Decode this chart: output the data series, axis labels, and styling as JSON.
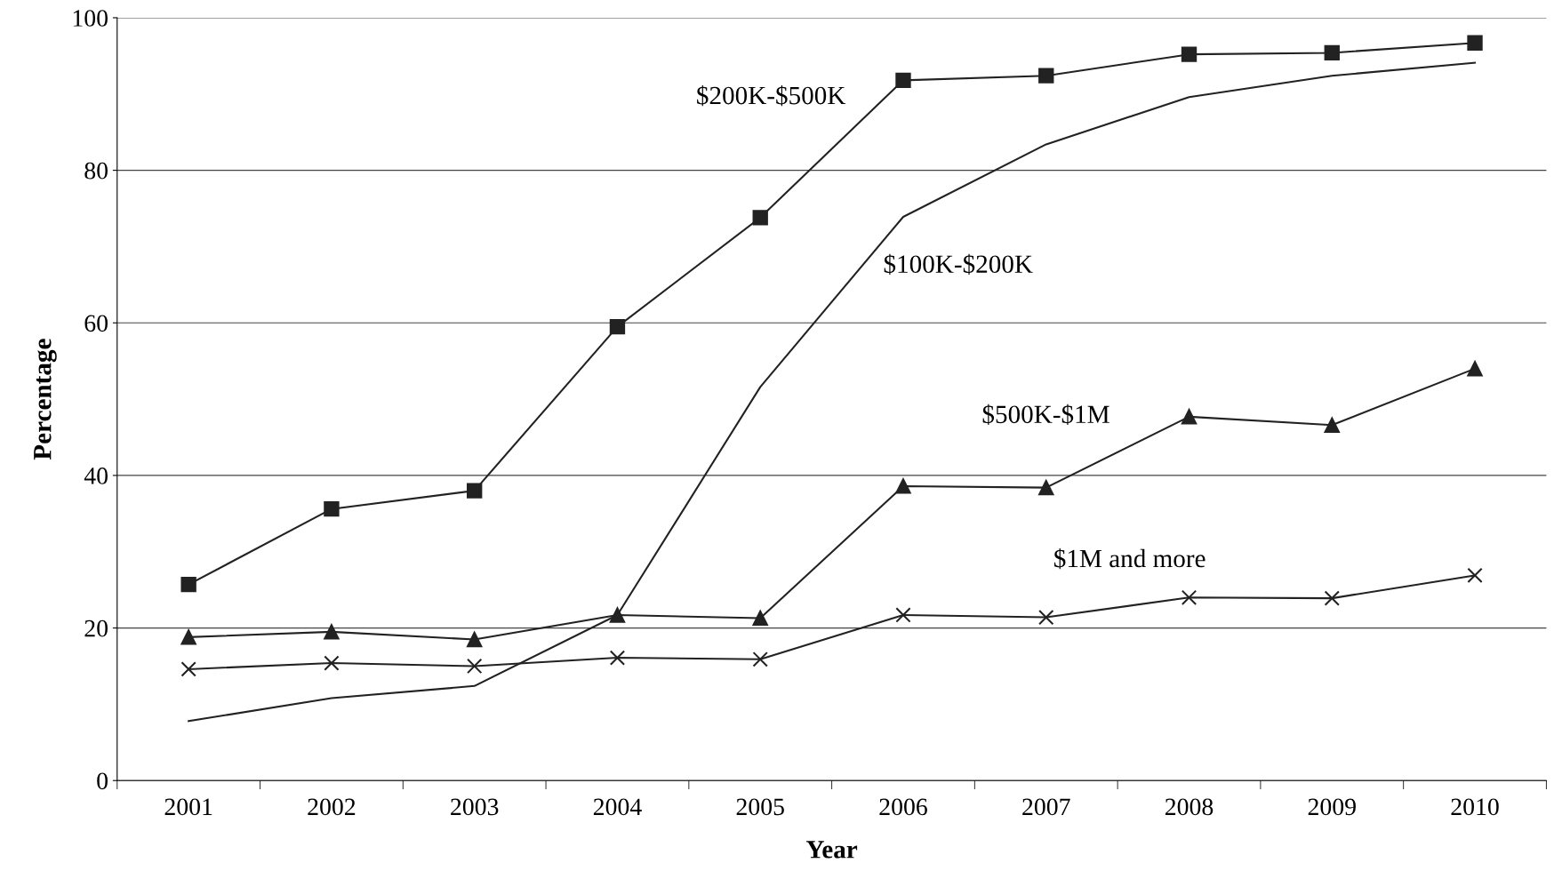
{
  "chart_data": {
    "type": "line",
    "xlabel": "Year",
    "ylabel": "Percentage",
    "categories": [
      "2001",
      "2002",
      "2003",
      "2004",
      "2005",
      "2006",
      "2007",
      "2008",
      "2009",
      "2010"
    ],
    "series": [
      {
        "color": "#222222",
        "marker": "square",
        "values": [
          25.7,
          35.6,
          38.0,
          59.5,
          73.8,
          91.8,
          92.4,
          95.2,
          95.4,
          96.7
        ]
      },
      {
        "color": "#222222",
        "marker": "none",
        "values": [
          7.8,
          10.8,
          12.4,
          21.7,
          51.6,
          73.9,
          83.4,
          89.6,
          92.4,
          94.1
        ]
      },
      {
        "color": "#222222",
        "marker": "triangle",
        "values": [
          18.8,
          19.5,
          18.5,
          21.7,
          21.3,
          38.6,
          38.4,
          47.7,
          46.6,
          54.0
        ]
      },
      {
        "color": "#222222",
        "marker": "cross",
        "values": [
          14.6,
          15.4,
          15.0,
          16.1,
          15.9,
          21.7,
          21.4,
          24.0,
          23.9,
          26.9
        ]
      }
    ],
    "annotations": [
      "$200K-$500K",
      "$100K-$200K",
      "$500K-$1M",
      "$1M and more"
    ],
    "ylim": [
      0,
      100
    ],
    "yticks": [
      0,
      20,
      40,
      60,
      80,
      100
    ],
    "grid": "y",
    "legend": false
  }
}
